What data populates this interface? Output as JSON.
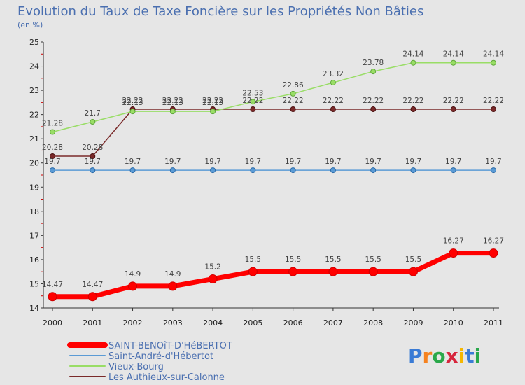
{
  "title": "Evolution du Taux de Taxe Foncière sur les Propriétés Non Bâties",
  "subtitle": "(en %)",
  "brand": "Proxiti",
  "chart_data": {
    "type": "line",
    "title": "Evolution du Taux de Taxe Foncière sur les Propriétés Non Bâties",
    "subtitle": "(en %)",
    "x": [
      "2000",
      "2001",
      "2002",
      "2003",
      "2004",
      "2005",
      "2006",
      "2007",
      "2008",
      "2009",
      "2010",
      "2011"
    ],
    "ylim": [
      14,
      25
    ],
    "yticks": [
      "14",
      "15",
      "16",
      "17",
      "18",
      "19",
      "20",
      "21",
      "22",
      "23",
      "24",
      "25"
    ],
    "grid": false,
    "legend": "bottom-left",
    "series": [
      {
        "name": "SAINT-BENOîT-D'HéBERTOT",
        "color": "#ff0000",
        "width": 7,
        "values": [
          14.47,
          14.47,
          14.9,
          14.9,
          15.2,
          15.5,
          15.5,
          15.5,
          15.5,
          15.5,
          16.27,
          16.27
        ],
        "labels": [
          "14.47",
          "14.47",
          "14.9",
          "14.9",
          "15.2",
          "15.5",
          "15.5",
          "15.5",
          "15.5",
          "15.5",
          "16.27",
          "16.27"
        ]
      },
      {
        "name": "Saint-André-d'Hébertot",
        "color": "#5b9bd5",
        "width": 1.5,
        "values": [
          19.7,
          19.7,
          19.7,
          19.7,
          19.7,
          19.7,
          19.7,
          19.7,
          19.7,
          19.7,
          19.7,
          19.7
        ],
        "labels": [
          "19.7",
          "19.7",
          "19.7",
          "19.7",
          "19.7",
          "19.7",
          "19.7",
          "19.7",
          "19.7",
          "19.7",
          "19.7",
          "19.7"
        ]
      },
      {
        "name": "Vieux-Bourg",
        "color": "#99dd66",
        "width": 1.5,
        "values": [
          21.28,
          21.7,
          22.13,
          22.13,
          22.13,
          22.53,
          22.86,
          23.32,
          23.78,
          24.14,
          24.14,
          24.14
        ],
        "labels": [
          "21.28",
          "21.7",
          "22.13",
          "22.13",
          "22.13",
          "22.53",
          "22.86",
          "23.32",
          "23.78",
          "24.14",
          "24.14",
          "24.14"
        ]
      },
      {
        "name": "Les Authieux-sur-Calonne",
        "color": "#7a2a2a",
        "width": 1.5,
        "values": [
          20.28,
          20.28,
          22.22,
          22.22,
          22.22,
          22.22,
          22.22,
          22.22,
          22.22,
          22.22,
          22.22,
          22.22
        ],
        "labels": [
          "20.28",
          "20.28",
          "22.22",
          "22.22",
          "22.22",
          "22.22",
          "22.22",
          "22.22",
          "22.22",
          "22.22",
          "22.22",
          "22.22"
        ]
      }
    ]
  }
}
